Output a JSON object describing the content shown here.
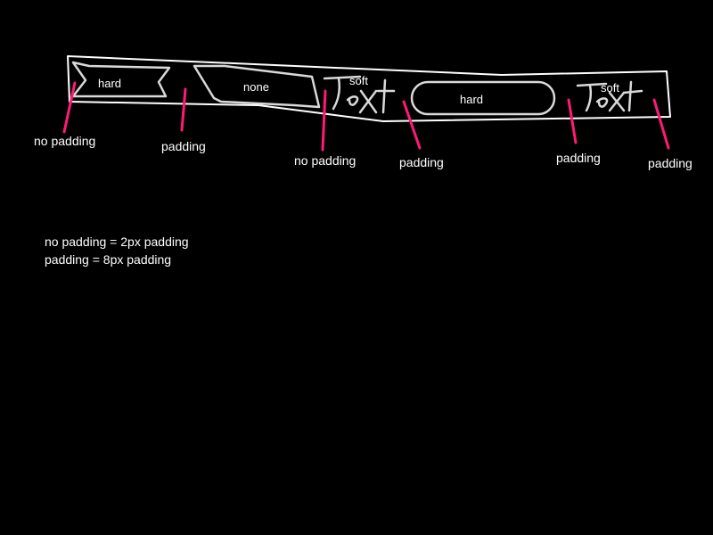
{
  "shapes": {
    "flag": "hard",
    "skewed": "none",
    "text1_style": "soft",
    "text1_word": "Text",
    "pill": "hard",
    "text2_style": "soft",
    "text2_word": "Text"
  },
  "annotations": {
    "a1": "no padding",
    "a2": "padding",
    "a3": "no padding",
    "a4": "padding",
    "a5": "padding",
    "a6": "padding"
  },
  "legend": {
    "line1": "no padding = 2px padding",
    "line2": "padding = 8px padding"
  },
  "colors": {
    "background": "#000000",
    "stroke": "#ffffff",
    "annotation": "#ff1a75"
  }
}
